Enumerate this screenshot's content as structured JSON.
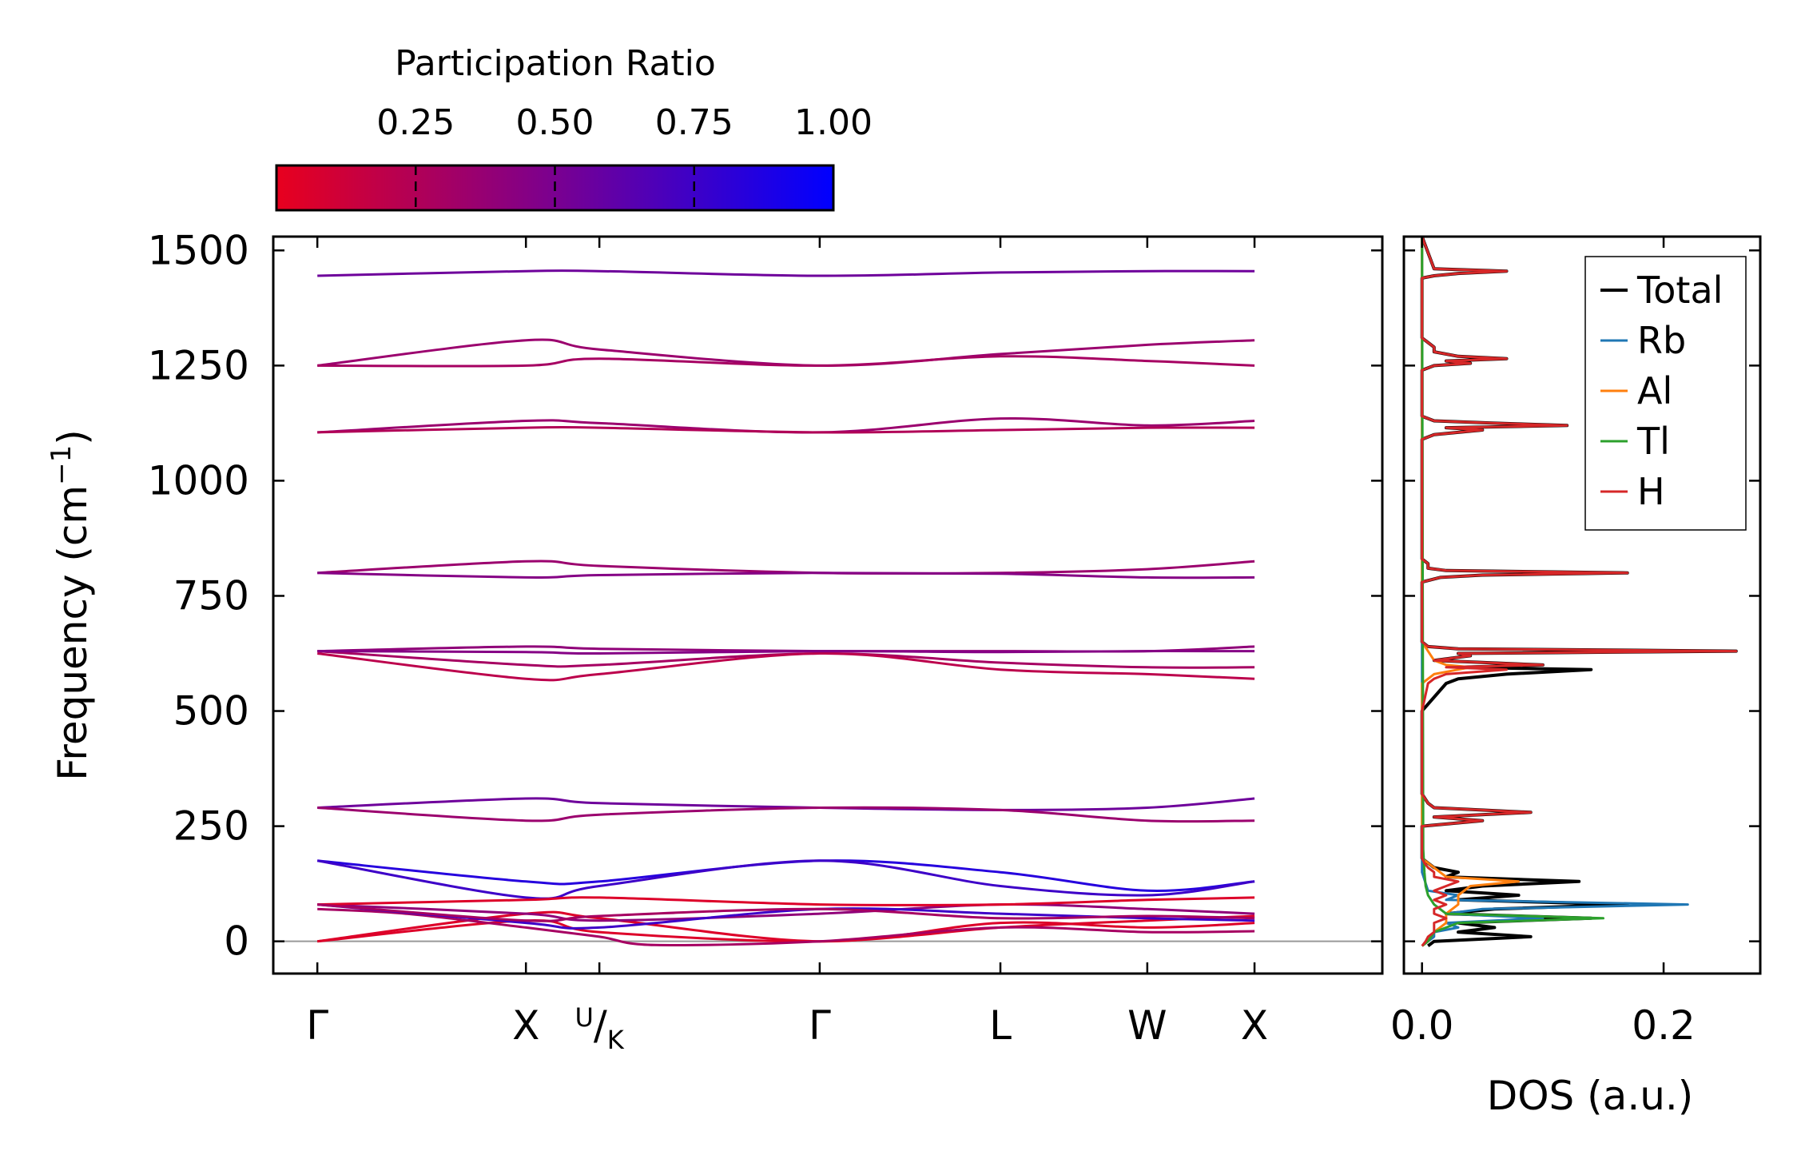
{
  "chart_data": [
    {
      "type": "line",
      "title": "",
      "xlabel": "",
      "ylabel": "Frequency (cm$^{-1}$)",
      "ylabel_parts": {
        "main": "Frequency (cm",
        "sup": "−1",
        "close": ")"
      },
      "ylim": [
        -70,
        1530
      ],
      "yticks": [
        0,
        250,
        500,
        750,
        1000,
        1250,
        1500
      ],
      "ytick_labels": [
        "0",
        "250",
        "500",
        "750",
        "1000",
        "1250",
        "1500"
      ],
      "xlim": [
        0,
        7.55
      ],
      "high_symmetry_points": [
        {
          "label": "Γ",
          "x": 0.3
        },
        {
          "label": "X",
          "x": 1.72
        },
        {
          "label": "U/K",
          "sup": "U",
          "sub": "K",
          "x": 2.22
        },
        {
          "label": "Γ",
          "x": 3.72
        },
        {
          "label": "L",
          "x": 4.95
        },
        {
          "label": "W",
          "x": 5.95
        },
        {
          "label": "X",
          "x": 6.68
        }
      ],
      "zero_line": 0,
      "colormap": {
        "low": "#e8001e",
        "mid": "#7a0090",
        "high": "#0000ff"
      },
      "series": [
        {
          "name": "band-1",
          "participation": 0.05,
          "x": [
            0.3,
            1.72,
            2.22,
            3.72,
            4.95,
            5.95,
            6.68
          ],
          "y": [
            0,
            60,
            50,
            0,
            40,
            30,
            40
          ]
        },
        {
          "name": "band-2",
          "participation": 0.05,
          "x": [
            0.3,
            1.72,
            2.22,
            3.72,
            4.95,
            5.95,
            6.68
          ],
          "y": [
            0,
            45,
            20,
            0,
            30,
            45,
            55
          ]
        },
        {
          "name": "band-3",
          "participation": 0.3,
          "x": [
            0.3,
            0.9,
            1.72,
            2.22,
            2.6,
            3.72,
            4.95,
            5.95,
            6.68
          ],
          "y": [
            70,
            60,
            30,
            10,
            -8,
            0,
            30,
            20,
            22
          ]
        },
        {
          "name": "band-4",
          "participation": 0.4,
          "x": [
            0.3,
            1.72,
            2.22,
            3.72,
            4.95,
            5.95,
            6.68
          ],
          "y": [
            80,
            60,
            45,
            60,
            80,
            70,
            60
          ]
        },
        {
          "name": "band-5",
          "participation": 0.75,
          "x": [
            0.3,
            1.72,
            2.22,
            3.72,
            4.95,
            5.95,
            6.68
          ],
          "y": [
            80,
            40,
            30,
            70,
            60,
            50,
            45
          ]
        },
        {
          "name": "band-6",
          "participation": 0.85,
          "x": [
            0.3,
            1.72,
            2.22,
            3.72,
            4.95,
            5.95,
            6.68
          ],
          "y": [
            175,
            130,
            130,
            175,
            150,
            110,
            130
          ]
        },
        {
          "name": "band-7",
          "participation": 0.75,
          "x": [
            0.3,
            1.72,
            2.22,
            3.72,
            4.95,
            5.95,
            6.68
          ],
          "y": [
            175,
            95,
            120,
            175,
            120,
            100,
            130
          ]
        },
        {
          "name": "band-8",
          "participation": 0.05,
          "x": [
            0.3,
            1.72,
            2.22,
            3.72,
            4.95,
            5.95,
            6.68
          ],
          "y": [
            80,
            90,
            95,
            80,
            80,
            90,
            95
          ]
        },
        {
          "name": "band-9",
          "participation": 0.3,
          "x": [
            0.3,
            1.72,
            2.22,
            3.72,
            4.95,
            5.95,
            6.68
          ],
          "y": [
            80,
            45,
            55,
            70,
            50,
            55,
            50
          ]
        },
        {
          "name": "band-10",
          "participation": 0.55,
          "x": [
            0.3,
            1.72,
            2.22,
            3.72,
            4.95,
            5.95,
            6.68
          ],
          "y": [
            290,
            310,
            300,
            290,
            285,
            290,
            310
          ]
        },
        {
          "name": "band-11",
          "participation": 0.35,
          "x": [
            0.3,
            1.72,
            2.22,
            3.72,
            4.95,
            5.95,
            6.68
          ],
          "y": [
            290,
            262,
            275,
            290,
            285,
            262,
            262
          ]
        },
        {
          "name": "band-12",
          "participation": 0.4,
          "x": [
            0.3,
            1.72,
            2.22,
            3.72,
            4.95,
            5.95,
            6.68
          ],
          "y": [
            630,
            640,
            635,
            630,
            630,
            630,
            640
          ]
        },
        {
          "name": "band-13",
          "participation": 0.3,
          "x": [
            0.3,
            1.72,
            2.22,
            3.72,
            4.95,
            5.95,
            6.68
          ],
          "y": [
            630,
            600,
            600,
            625,
            605,
            595,
            595
          ]
        },
        {
          "name": "band-14",
          "participation": 0.2,
          "x": [
            0.3,
            1.72,
            2.22,
            3.72,
            4.95,
            5.95,
            6.68
          ],
          "y": [
            625,
            570,
            580,
            625,
            590,
            580,
            570
          ]
        },
        {
          "name": "band-15",
          "participation": 0.45,
          "x": [
            0.3,
            1.72,
            2.22,
            3.72,
            4.95,
            5.95,
            6.68
          ],
          "y": [
            630,
            628,
            625,
            630,
            628,
            630,
            630
          ]
        },
        {
          "name": "band-16",
          "participation": 0.35,
          "x": [
            0.3,
            1.72,
            2.22,
            3.72,
            4.95,
            5.95,
            6.68
          ],
          "y": [
            800,
            825,
            815,
            800,
            800,
            808,
            825
          ]
        },
        {
          "name": "band-17",
          "participation": 0.45,
          "x": [
            0.3,
            1.72,
            2.22,
            3.72,
            4.95,
            5.95,
            6.68
          ],
          "y": [
            800,
            790,
            795,
            800,
            798,
            790,
            790
          ]
        },
        {
          "name": "band-18",
          "participation": 0.35,
          "x": [
            0.3,
            1.72,
            2.22,
            3.72,
            4.95,
            5.95,
            6.68
          ],
          "y": [
            1105,
            1130,
            1125,
            1105,
            1135,
            1120,
            1130
          ]
        },
        {
          "name": "band-19",
          "participation": 0.25,
          "x": [
            0.3,
            1.72,
            2.22,
            3.72,
            4.95,
            5.95,
            6.68
          ],
          "y": [
            1105,
            1115,
            1115,
            1105,
            1110,
            1115,
            1115
          ]
        },
        {
          "name": "band-20",
          "participation": 0.35,
          "x": [
            0.3,
            1.72,
            2.22,
            3.72,
            4.95,
            5.95,
            6.68
          ],
          "y": [
            1250,
            1305,
            1285,
            1250,
            1275,
            1295,
            1305
          ]
        },
        {
          "name": "band-21",
          "participation": 0.3,
          "x": [
            0.3,
            1.72,
            2.22,
            3.72,
            4.95,
            5.95,
            6.68
          ],
          "y": [
            1250,
            1250,
            1265,
            1250,
            1270,
            1260,
            1250
          ]
        },
        {
          "name": "band-22",
          "participation": 0.55,
          "x": [
            0.3,
            1.72,
            2.22,
            3.72,
            4.95,
            5.95,
            6.68
          ],
          "y": [
            1445,
            1455,
            1455,
            1445,
            1452,
            1455,
            1455
          ]
        }
      ]
    },
    {
      "type": "line",
      "title": "",
      "xlabel": "DOS (a.u.)",
      "ylabel": "",
      "xlim": [
        -0.015,
        0.28
      ],
      "ylim": [
        -70,
        1530
      ],
      "xticks": [
        0.0,
        0.2
      ],
      "xtick_labels": [
        "0.0",
        "0.2"
      ],
      "legend": {
        "placement": "top-right"
      },
      "series": [
        {
          "name": "Total",
          "color": "#000000",
          "y": [
            -10,
            0,
            10,
            20,
            30,
            40,
            50,
            60,
            70,
            80,
            90,
            100,
            110,
            120,
            130,
            140,
            150,
            160,
            170,
            180,
            200,
            250,
            262,
            270,
            280,
            290,
            300,
            320,
            500,
            560,
            570,
            580,
            590,
            595,
            600,
            610,
            620,
            625,
            630,
            635,
            640,
            650,
            780,
            790,
            795,
            800,
            805,
            810,
            820,
            830,
            1090,
            1100,
            1105,
            1110,
            1115,
            1120,
            1125,
            1130,
            1140,
            1240,
            1250,
            1255,
            1260,
            1265,
            1270,
            1280,
            1290,
            1300,
            1310,
            1440,
            1445,
            1450,
            1455,
            1460,
            1530
          ],
          "values": [
            0.005,
            0.01,
            0.09,
            0.03,
            0.06,
            0.03,
            0.14,
            0.02,
            0.06,
            0.17,
            0.03,
            0.08,
            0.02,
            0.05,
            0.13,
            0.02,
            0.03,
            0.01,
            0.005,
            0,
            0,
            0,
            0.05,
            0.01,
            0.09,
            0.01,
            0.005,
            0,
            0,
            0.02,
            0.03,
            0.07,
            0.14,
            0.03,
            0.1,
            0.01,
            0.04,
            0.03,
            0.26,
            0.03,
            0.005,
            0,
            0,
            0.015,
            0.05,
            0.17,
            0.02,
            0.005,
            0.005,
            0,
            0,
            0.01,
            0.03,
            0.05,
            0.02,
            0.12,
            0.06,
            0.01,
            0,
            0,
            0.01,
            0.04,
            0.02,
            0.07,
            0.03,
            0.01,
            0.01,
            0.005,
            0,
            0,
            0.01,
            0.03,
            0.07,
            0.01,
            0
          ]
        },
        {
          "name": "Rb",
          "color": "#1f77b4",
          "y": [
            -10,
            0,
            10,
            20,
            30,
            40,
            50,
            60,
            70,
            80,
            90,
            100,
            110,
            150,
            1530
          ],
          "values": [
            0,
            0.005,
            0.01,
            0.01,
            0.03,
            0.02,
            0.1,
            0.02,
            0.05,
            0.22,
            0.02,
            0.03,
            0.005,
            0,
            0
          ]
        },
        {
          "name": "Al",
          "color": "#ff7f0e",
          "y": [
            -10,
            0,
            20,
            40,
            60,
            80,
            100,
            120,
            130,
            140,
            160,
            180,
            560,
            580,
            590,
            595,
            600,
            610,
            630,
            650,
            1530
          ],
          "values": [
            0,
            0.005,
            0.01,
            0.02,
            0.02,
            0.03,
            0.03,
            0.04,
            0.08,
            0.02,
            0.01,
            0,
            0,
            0.01,
            0.03,
            0.04,
            0.02,
            0.01,
            0.005,
            0,
            0
          ]
        },
        {
          "name": "Tl",
          "color": "#2ca02c",
          "y": [
            -10,
            0,
            20,
            40,
            50,
            60,
            80,
            100,
            120,
            150,
            200,
            1530
          ],
          "values": [
            0,
            0.005,
            0.01,
            0.03,
            0.15,
            0.02,
            0.01,
            0.005,
            0.003,
            0.002,
            0.001,
            0
          ]
        },
        {
          "name": "H",
          "color": "#d62728",
          "y": [
            -10,
            0,
            10,
            20,
            30,
            40,
            50,
            60,
            70,
            80,
            90,
            100,
            110,
            120,
            130,
            140,
            150,
            160,
            170,
            180,
            200,
            250,
            262,
            270,
            280,
            290,
            300,
            320,
            500,
            560,
            570,
            580,
            590,
            595,
            600,
            610,
            620,
            625,
            630,
            635,
            640,
            650,
            780,
            790,
            795,
            800,
            805,
            810,
            820,
            830,
            1090,
            1100,
            1105,
            1110,
            1115,
            1120,
            1125,
            1130,
            1140,
            1240,
            1250,
            1255,
            1260,
            1265,
            1270,
            1280,
            1290,
            1300,
            1310,
            1440,
            1445,
            1450,
            1455,
            1460,
            1530
          ],
          "values": [
            0,
            0.003,
            0.005,
            0.01,
            0.01,
            0.01,
            0.02,
            0.01,
            0.01,
            0.02,
            0.01,
            0.02,
            0.01,
            0.02,
            0.03,
            0.01,
            0.01,
            0.005,
            0.002,
            0,
            0,
            0,
            0.05,
            0.01,
            0.09,
            0.01,
            0.005,
            0,
            0,
            0.005,
            0.01,
            0.02,
            0.07,
            0.02,
            0.1,
            0.01,
            0.04,
            0.03,
            0.26,
            0.03,
            0.005,
            0,
            0,
            0.015,
            0.05,
            0.17,
            0.02,
            0.005,
            0.005,
            0,
            0,
            0.01,
            0.03,
            0.05,
            0.02,
            0.12,
            0.06,
            0.01,
            0,
            0,
            0.01,
            0.04,
            0.02,
            0.07,
            0.03,
            0.01,
            0.01,
            0.005,
            0,
            0,
            0.01,
            0.03,
            0.07,
            0.01,
            0
          ]
        }
      ]
    },
    {
      "type": "colorbar",
      "title": "Participation Ratio",
      "range": [
        0.0,
        1.0
      ],
      "ticks": [
        0.25,
        0.5,
        0.75,
        1.0
      ],
      "tick_labels": [
        "0.25",
        "0.50",
        "0.75",
        "1.00"
      ],
      "colors": {
        "low": "#e8001e",
        "mid": "#7a0090",
        "high": "#0000ff"
      }
    }
  ]
}
